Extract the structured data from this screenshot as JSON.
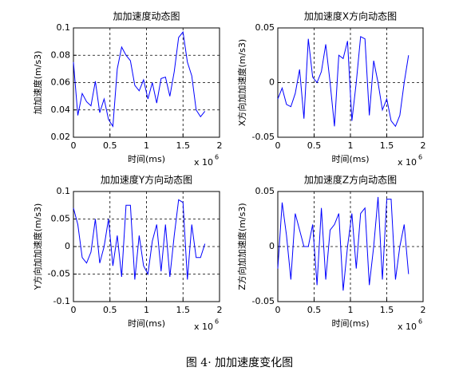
{
  "chart_data": [
    {
      "type": "line",
      "title": "加加速度动态图",
      "xlabel": "时间(ms)",
      "ylabel": "加加速度(m/s3)",
      "x_multiplier": "x 10",
      "x_multiplier_exp": "6",
      "xlim": [
        0,
        2
      ],
      "xticks": [
        0,
        0.5,
        1,
        1.5,
        2
      ],
      "ylim": [
        0.02,
        0.1
      ],
      "yticks": [
        0.02,
        0.04,
        0.06,
        0.08,
        0.1
      ],
      "grid": true,
      "color": "#0000ff",
      "x": [
        0,
        0.06,
        0.12,
        0.18,
        0.24,
        0.3,
        0.36,
        0.42,
        0.48,
        0.54,
        0.6,
        0.66,
        0.72,
        0.78,
        0.84,
        0.9,
        0.96,
        1.02,
        1.08,
        1.14,
        1.2,
        1.26,
        1.32,
        1.38,
        1.44,
        1.5,
        1.56,
        1.62,
        1.68,
        1.74,
        1.8
      ],
      "values": [
        0.075,
        0.036,
        0.052,
        0.046,
        0.043,
        0.061,
        0.038,
        0.048,
        0.033,
        0.028,
        0.07,
        0.086,
        0.08,
        0.076,
        0.058,
        0.054,
        0.062,
        0.048,
        0.06,
        0.045,
        0.063,
        0.064,
        0.05,
        0.068,
        0.093,
        0.097,
        0.075,
        0.065,
        0.04,
        0.035,
        0.039
      ]
    },
    {
      "type": "line",
      "title": "加加速度X方向动态图",
      "xlabel": "时间(ms)",
      "ylabel": "X方向加加速度(m/s3)",
      "x_multiplier": "x 10",
      "x_multiplier_exp": "6",
      "xlim": [
        0,
        2
      ],
      "xticks": [
        0,
        0.5,
        1,
        1.5,
        2
      ],
      "ylim": [
        -0.05,
        0.05
      ],
      "yticks": [
        -0.05,
        0,
        0.05
      ],
      "grid": true,
      "color": "#0000ff",
      "x": [
        0,
        0.06,
        0.12,
        0.18,
        0.24,
        0.3,
        0.36,
        0.42,
        0.48,
        0.54,
        0.6,
        0.66,
        0.72,
        0.78,
        0.84,
        0.9,
        0.96,
        1.02,
        1.08,
        1.14,
        1.2,
        1.26,
        1.32,
        1.38,
        1.44,
        1.5,
        1.56,
        1.62,
        1.68,
        1.74,
        1.8
      ],
      "values": [
        -0.015,
        -0.005,
        -0.02,
        -0.022,
        -0.01,
        0.012,
        -0.033,
        0.04,
        0.005,
        0.0,
        0.01,
        0.035,
        0.0,
        -0.04,
        0.025,
        0.022,
        0.038,
        -0.035,
        0.0,
        0.042,
        0.04,
        -0.03,
        0.02,
        0.0,
        -0.025,
        -0.015,
        -0.035,
        -0.04,
        -0.03,
        0.0,
        0.025
      ]
    },
    {
      "type": "line",
      "title": "加加速度Y方向动态图",
      "xlabel": "时间(ms)",
      "ylabel": "Y方向加加速度(m/s3)",
      "x_multiplier": "x 10",
      "x_multiplier_exp": "6",
      "xlim": [
        0,
        2
      ],
      "xticks": [
        0,
        0.5,
        1,
        1.5,
        2
      ],
      "ylim": [
        -0.1,
        0.1
      ],
      "yticks": [
        -0.1,
        -0.05,
        0,
        0.05,
        0.1
      ],
      "grid": true,
      "color": "#0000ff",
      "x": [
        0,
        0.06,
        0.12,
        0.18,
        0.24,
        0.3,
        0.36,
        0.42,
        0.48,
        0.54,
        0.6,
        0.66,
        0.72,
        0.78,
        0.84,
        0.9,
        0.96,
        1.02,
        1.08,
        1.14,
        1.2,
        1.26,
        1.32,
        1.38,
        1.44,
        1.5,
        1.56,
        1.62,
        1.68,
        1.74,
        1.8
      ],
      "values": [
        0.07,
        0.04,
        -0.02,
        -0.03,
        -0.01,
        0.05,
        -0.03,
        0.0,
        0.05,
        -0.035,
        0.02,
        -0.055,
        0.075,
        0.075,
        -0.06,
        0.02,
        -0.035,
        -0.05,
        0.01,
        0.04,
        -0.045,
        0.04,
        -0.055,
        0.02,
        0.085,
        0.08,
        -0.06,
        0.04,
        -0.02,
        -0.02,
        0.005
      ]
    },
    {
      "type": "line",
      "title": "加加速度Z方向动态图",
      "xlabel": "时间(ms)",
      "ylabel": "Z方向加加速度(m/s3)",
      "x_multiplier": "x 10",
      "x_multiplier_exp": "6",
      "xlim": [
        0,
        2
      ],
      "xticks": [
        0,
        0.5,
        1,
        1.5,
        2
      ],
      "ylim": [
        -0.05,
        0.05
      ],
      "yticks": [
        -0.05,
        0,
        0.05
      ],
      "grid": true,
      "color": "#0000ff",
      "x": [
        0,
        0.06,
        0.12,
        0.18,
        0.24,
        0.3,
        0.36,
        0.42,
        0.48,
        0.54,
        0.6,
        0.66,
        0.72,
        0.78,
        0.84,
        0.9,
        0.96,
        1.02,
        1.08,
        1.14,
        1.2,
        1.26,
        1.32,
        1.38,
        1.44,
        1.5,
        1.56,
        1.62,
        1.68,
        1.74,
        1.8
      ],
      "values": [
        -0.02,
        0.04,
        0.01,
        -0.03,
        0.03,
        0.015,
        0.0,
        0.0,
        0.02,
        -0.035,
        0.035,
        -0.03,
        0.015,
        0.02,
        0.03,
        -0.04,
        0.0,
        0.03,
        -0.02,
        0.03,
        0.035,
        -0.035,
        0.0,
        0.045,
        -0.03,
        0.043,
        0.043,
        -0.03,
        0.0,
        0.02,
        -0.025
      ]
    }
  ],
  "caption": "图 4· 加加速度变化图"
}
